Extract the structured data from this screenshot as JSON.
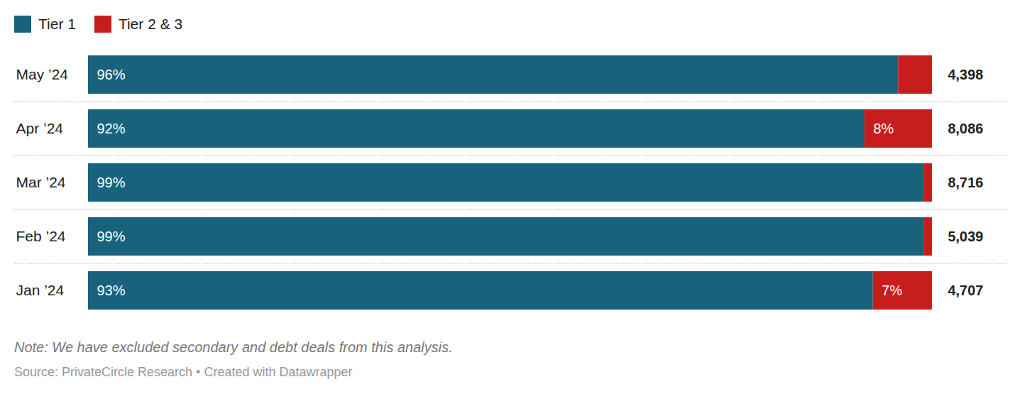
{
  "chart_data": {
    "type": "bar",
    "orientation": "horizontal",
    "stacked": true,
    "data_labels": true,
    "tick_labels": "y",
    "legend": "top-left",
    "note": "Note: We have excluded secondary and debt deals from this analysis.",
    "source": "Source: PrivateCircle Research • Created with Datawrapper",
    "categories": [
      "May ’24",
      "Apr ’24",
      "Mar ’24",
      "Feb ’24",
      "Jan ’24"
    ],
    "series": [
      {
        "name": "Tier 1",
        "color": "#18627e",
        "values": [
          96,
          92,
          99,
          99,
          93
        ],
        "value_labels": [
          "96%",
          "92%",
          "99%",
          "99%",
          "93%"
        ]
      },
      {
        "name": "Tier 2 & 3",
        "color": "#c71e1d",
        "values": [
          4,
          8,
          1,
          1,
          7
        ],
        "value_labels": [
          null,
          "8%",
          null,
          null,
          "7%"
        ]
      }
    ],
    "totals": {
      "values": [
        4398,
        8086,
        8716,
        5039,
        4707
      ],
      "value_labels": [
        "4,398",
        "8,086",
        "8,716",
        "5,039",
        "4,707"
      ]
    },
    "xlim": [
      0,
      100
    ],
    "xticks": []
  }
}
